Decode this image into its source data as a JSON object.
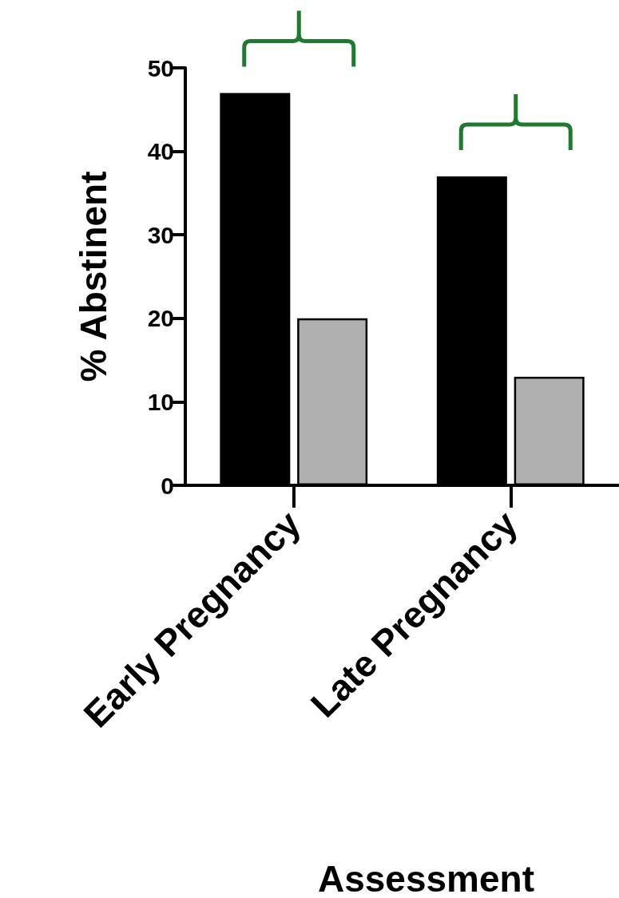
{
  "chart_data": {
    "type": "bar",
    "xlabel": "Assessment",
    "ylabel": "% Abstinent",
    "categories": [
      "Early Pregnancy",
      "Late Pregnancy"
    ],
    "series": [
      {
        "color": "#000000",
        "values": [
          47,
          37
        ]
      },
      {
        "color": "#b0b0b0",
        "values": [
          20,
          13
        ]
      }
    ],
    "ylim": [
      0,
      50
    ],
    "yticks": [
      0,
      10,
      20,
      30,
      40,
      50
    ],
    "grid": false
  }
}
